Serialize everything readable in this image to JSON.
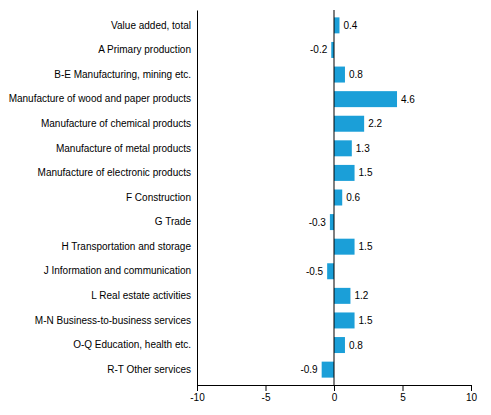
{
  "chart_data": {
    "type": "bar",
    "orientation": "horizontal",
    "categories": [
      "Value added, total",
      "A Primary production",
      "B-E Manufacturing, mining etc.",
      "Manufacture of wood and paper products",
      "Manufacture of chemical products",
      "Manufacture of metal products",
      "Manufacture of electronic products",
      "F Construction",
      "G Trade",
      "H Transportation and storage",
      "J Information and communication",
      "L Real estate activities",
      "M-N Business-to-business services",
      "O-Q Education, health etc.",
      "R-T Other services"
    ],
    "values": [
      0.4,
      -0.2,
      0.8,
      4.6,
      2.2,
      1.3,
      1.5,
      0.6,
      -0.3,
      1.5,
      -0.5,
      1.2,
      1.5,
      0.8,
      -0.9
    ],
    "color": "#1b9fd8",
    "xlim": [
      -10,
      10
    ],
    "xticks": [
      -10,
      -5,
      0,
      5,
      10
    ],
    "data_labels": true,
    "grid": false
  }
}
